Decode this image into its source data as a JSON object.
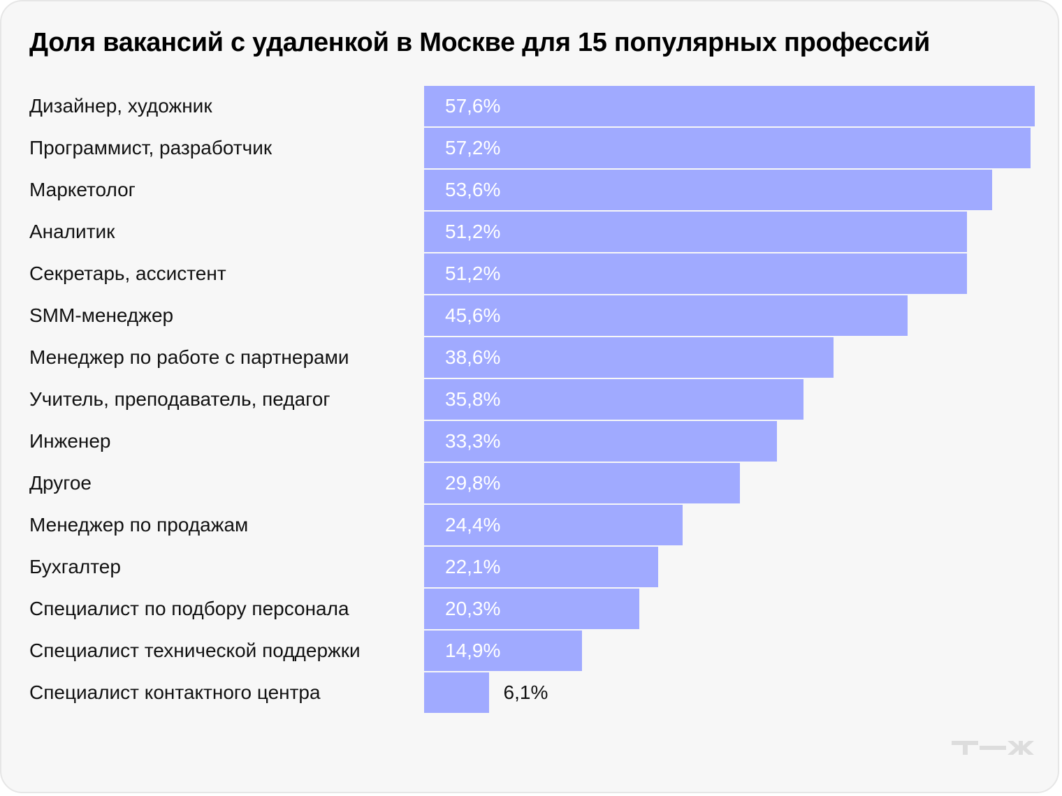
{
  "chart_data": {
    "type": "bar",
    "orientation": "horizontal",
    "title": "Доля вакансий с удаленкой в Москве для 15 популярных профессий",
    "categories": [
      "Дизайнер, художник",
      "Программист, разработчик",
      "Маркетолог",
      "Аналитик",
      "Секретарь, ассистент",
      "SMM-менеджер",
      "Менеджер по работе с партнерами",
      "Учитель, преподаватель, педагог",
      "Инженер",
      "Другое",
      "Менеджер по продажам",
      "Бухгалтер",
      "Специалист по подбору персонала",
      "Специалист технической поддержки",
      "Специалист контактного центра"
    ],
    "values": [
      57.6,
      57.2,
      53.6,
      51.2,
      51.2,
      45.6,
      38.6,
      35.8,
      33.3,
      29.8,
      24.4,
      22.1,
      20.3,
      14.9,
      6.1
    ],
    "value_labels": [
      "57,6%",
      "57,2%",
      "53,6%",
      "51,2%",
      "51,2%",
      "45,6%",
      "38,6%",
      "35,8%",
      "33,3%",
      "29,8%",
      "24,4%",
      "22,1%",
      "20,3%",
      "14,9%",
      "6,1%"
    ],
    "unit": "%",
    "grid": false,
    "legend": "none"
  },
  "colors": {
    "bar": "#a0aaff",
    "bar_text": "#ffffff",
    "outside_text": "#111111",
    "background": "#f7f7f7",
    "logo": "#dddddd"
  },
  "logo": "т—ж"
}
